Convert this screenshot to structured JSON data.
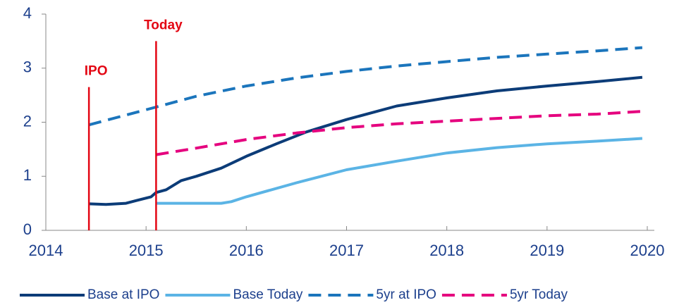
{
  "chart_data": {
    "type": "line",
    "xlim": [
      2014,
      2020
    ],
    "xticks": [
      2014,
      2015,
      2016,
      2017,
      2018,
      2019,
      2020
    ],
    "ylim": [
      0,
      4
    ],
    "yticks": [
      0,
      1,
      2,
      3,
      4
    ],
    "legend": "bottom",
    "annotations": [
      {
        "text": "IPO",
        "x": 2014.43,
        "top": 2.65,
        "color": "#e30613"
      },
      {
        "text": "Today",
        "x": 2015.1,
        "top": 3.5,
        "color": "#e30613"
      }
    ],
    "series": [
      {
        "name": "Base at IPO",
        "color": "#0c3c78",
        "dash": false,
        "x": [
          2014.43,
          2014.6,
          2014.8,
          2014.9,
          2015.05,
          2015.1,
          2015.2,
          2015.35,
          2015.5,
          2015.75,
          2016,
          2016.3,
          2016.6,
          2017,
          2017.5,
          2018,
          2018.5,
          2019,
          2019.5,
          2019.95
        ],
        "values": [
          0.49,
          0.48,
          0.5,
          0.55,
          0.62,
          0.7,
          0.75,
          0.92,
          1.0,
          1.15,
          1.37,
          1.6,
          1.82,
          2.05,
          2.3,
          2.45,
          2.58,
          2.67,
          2.75,
          2.83
        ]
      },
      {
        "name": "Base Today",
        "color": "#5bb4e5",
        "dash": false,
        "x": [
          2015.1,
          2015.75,
          2015.85,
          2016,
          2016.5,
          2017,
          2017.5,
          2018,
          2018.5,
          2019,
          2019.5,
          2019.95
        ],
        "values": [
          0.5,
          0.5,
          0.53,
          0.62,
          0.88,
          1.12,
          1.28,
          1.43,
          1.53,
          1.6,
          1.65,
          1.7
        ]
      },
      {
        "name": "5yr at IPO",
        "color": "#1b75bc",
        "dash": true,
        "x": [
          2014.43,
          2015.1,
          2015.5,
          2016,
          2016.5,
          2017,
          2017.5,
          2018,
          2018.5,
          2019,
          2019.5,
          2019.95
        ],
        "values": [
          1.95,
          2.28,
          2.48,
          2.67,
          2.82,
          2.94,
          3.04,
          3.12,
          3.2,
          3.26,
          3.32,
          3.38
        ]
      },
      {
        "name": "5yr Today",
        "color": "#e5007e",
        "dash": true,
        "x": [
          2015.1,
          2015.5,
          2016,
          2016.5,
          2017,
          2017.5,
          2018,
          2018.5,
          2019,
          2019.5,
          2019.95
        ],
        "values": [
          1.4,
          1.52,
          1.68,
          1.8,
          1.9,
          1.97,
          2.02,
          2.07,
          2.12,
          2.15,
          2.2
        ]
      }
    ]
  }
}
